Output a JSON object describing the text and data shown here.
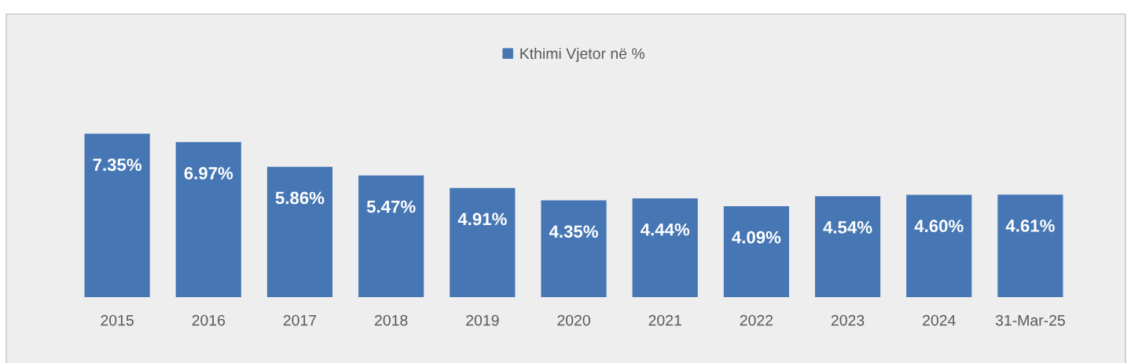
{
  "chart_data": {
    "type": "bar",
    "categories": [
      "2015",
      "2016",
      "2017",
      "2018",
      "2019",
      "2020",
      "2021",
      "2022",
      "2023",
      "2024",
      "31-Mar-25"
    ],
    "series": [
      {
        "name": "Kthimi Vjetor në %",
        "color": "#4677b4",
        "values": [
          7.35,
          6.97,
          5.86,
          5.47,
          4.91,
          4.35,
          4.44,
          4.09,
          4.54,
          4.6,
          4.61
        ],
        "value_labels": [
          "7.35%",
          "6.97%",
          "5.86%",
          "5.47%",
          "4.91%",
          "4.35%",
          "4.44%",
          "4.09%",
          "4.54%",
          "4.60%",
          "4.61%"
        ]
      }
    ],
    "legend": "top",
    "tick_labels": "x"
  }
}
